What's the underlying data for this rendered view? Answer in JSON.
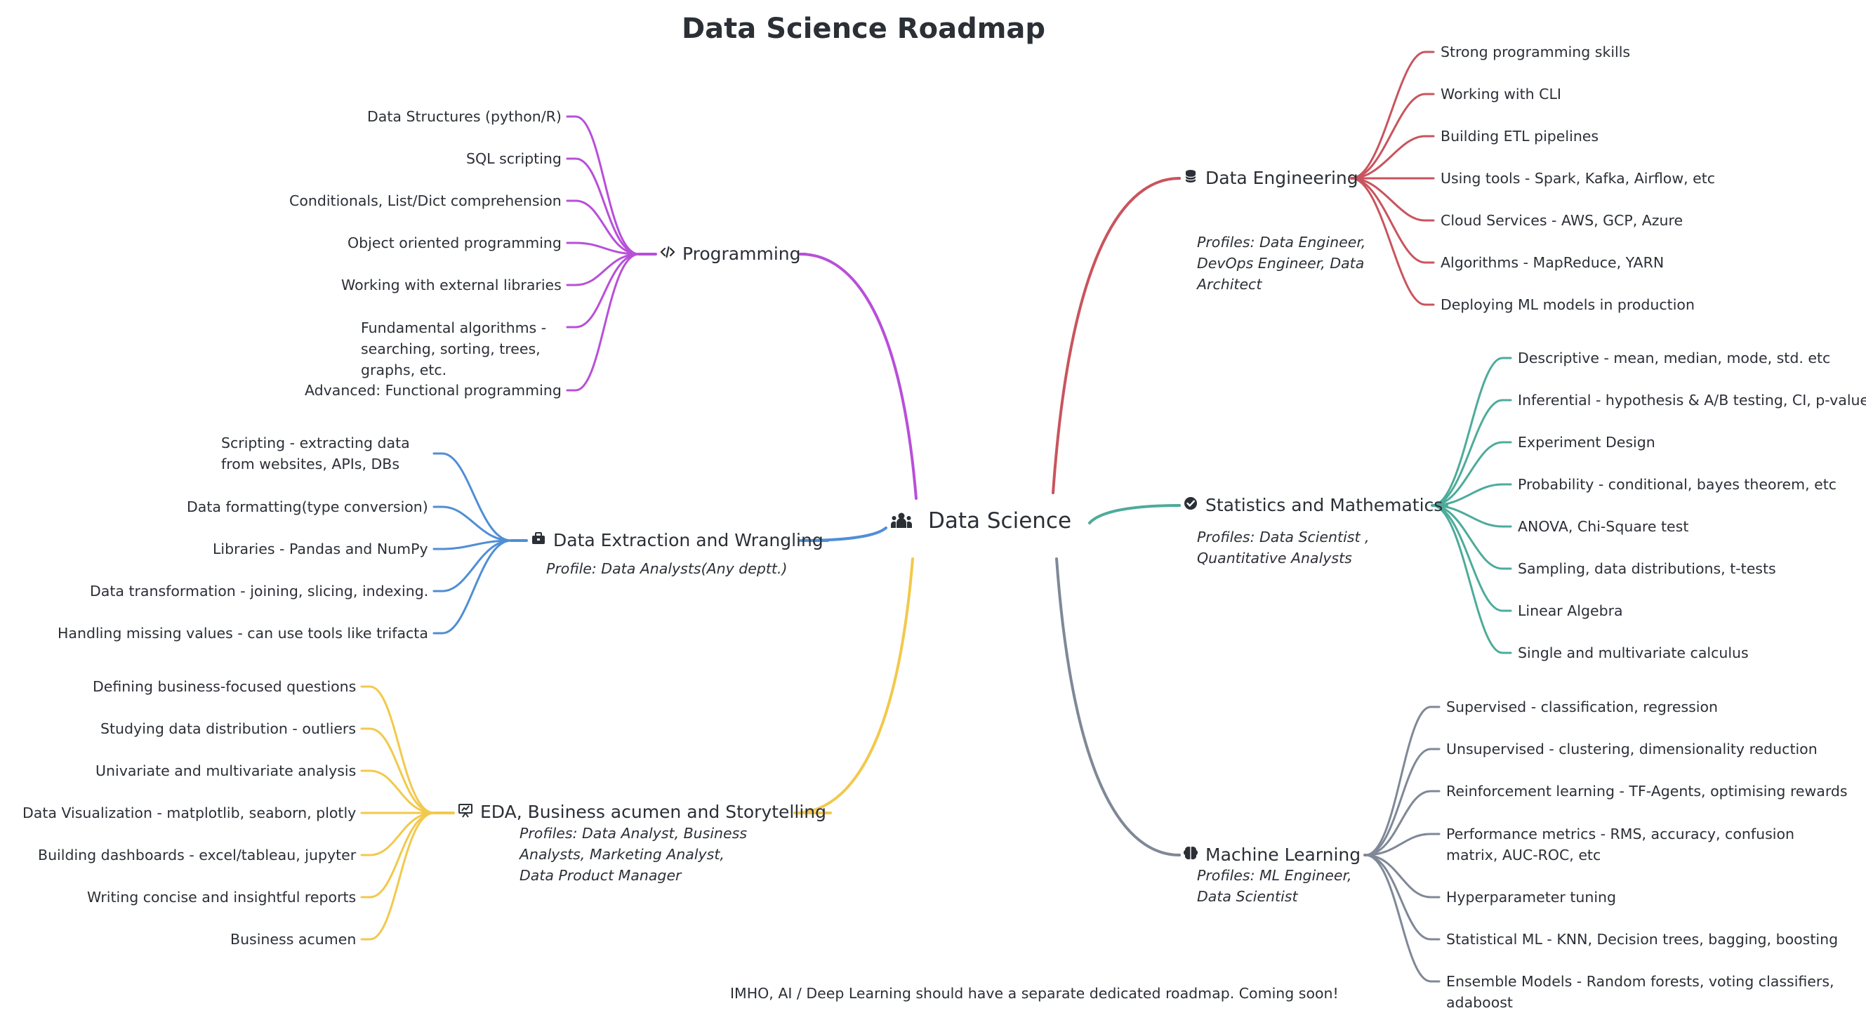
{
  "title": "Data Science Roadmap",
  "root": {
    "label": "Data Science",
    "icon": "people-group-icon"
  },
  "footer": "IMHO, AI / Deep Learning should have a separate dedicated roadmap. Coming soon!",
  "colors": {
    "programming": "#b84fd9",
    "extraction": "#4f8ed6",
    "eda": "#f2c94c",
    "engineering": "#c9545d",
    "statistics": "#4dab9a",
    "ml": "#7f8897"
  },
  "branches": {
    "programming": {
      "label": "Programming",
      "icon": "code-icon",
      "items": [
        "Data Structures (python/R)",
        "SQL scripting",
        "Conditionals, List/Dict comprehension",
        "Object oriented programming",
        "Working with external libraries",
        "Fundamental algorithms - searching, sorting, trees, graphs, etc.",
        "Advanced: Functional programming"
      ]
    },
    "extraction": {
      "label": "Data Extraction and Wrangling",
      "icon": "toolbox-icon",
      "profile": "Profile: Data Analysts(Any deptt.)",
      "items": [
        "Scripting - extracting data from websites, APIs, DBs",
        "Data formatting(type conversion)",
        "Libraries - Pandas and NumPy",
        "Data transformation - joining, slicing, indexing.",
        "Handling missing values - can use tools like trifacta"
      ]
    },
    "eda": {
      "label": "EDA, Business acumen and Storytelling",
      "icon": "presentation-chart-icon",
      "profile": "Profiles: Data Analyst, Business Analysts, Marketing Analyst, Data Product Manager",
      "items": [
        "Defining business-focused questions",
        "Studying data distribution - outliers",
        "Univariate and multivariate analysis",
        "Data Visualization - matplotlib, seaborn, plotly",
        "Building dashboards - excel/tableau, jupyter",
        "Writing concise and insightful reports",
        "Business acumen"
      ]
    },
    "engineering": {
      "label": "Data Engineering",
      "icon": "database-icon",
      "profile": "Profiles: Data Engineer, DevOps Engineer, Data Architect",
      "items": [
        "Strong programming skills",
        "Working with CLI",
        "Building ETL pipelines",
        "Using tools - Spark, Kafka, Airflow, etc",
        "Cloud Services - AWS, GCP, Azure",
        "Algorithms - MapReduce, YARN",
        "Deploying ML models in production"
      ]
    },
    "statistics": {
      "label": "Statistics and Mathematics",
      "icon": "check-circle-icon",
      "profile": "Profiles: Data Scientist , Quantitative Analysts",
      "items": [
        "Descriptive - mean, median, mode, std. etc",
        "Inferential - hypothesis & A/B testing, CI, p-value",
        "Experiment Design",
        "Probability - conditional, bayes theorem, etc",
        "ANOVA, Chi-Square test",
        "Sampling, data distributions, t-tests",
        "Linear Algebra",
        "Single and multivariate calculus"
      ]
    },
    "ml": {
      "label": "Machine Learning",
      "icon": "brain-icon",
      "profile": "Profiles: ML Engineer, Data Scientist",
      "items": [
        "Supervised - classification, regression",
        "Unsupervised - clustering, dimensionality reduction",
        "Reinforcement learning - TF-Agents, optimising rewards",
        "Performance metrics - RMS, accuracy, confusion matrix, AUC-ROC, etc",
        "Hyperparameter tuning",
        "Statistical ML - KNN, Decision trees, bagging, boosting",
        "Ensemble Models - Random forests, voting classifiers, adaboost"
      ]
    }
  }
}
